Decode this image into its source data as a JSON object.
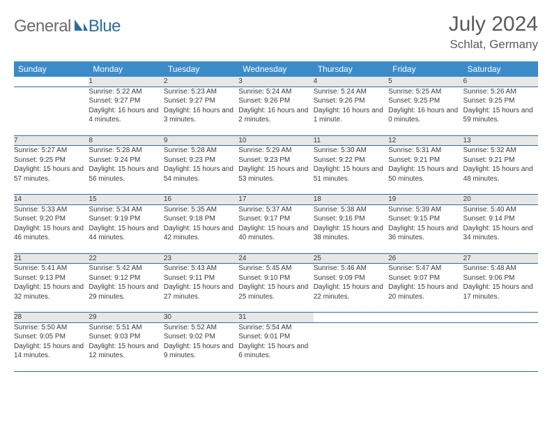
{
  "brand": {
    "general": "General",
    "blue": "Blue"
  },
  "title": {
    "month": "July 2024",
    "location": "Schlat, Germany"
  },
  "colors": {
    "header_bg": "#3b8bc9",
    "daynum_bg": "#e7e7e7",
    "border": "#2d6ca2",
    "logo_blue": "#2d6ca2",
    "text": "#3a3a3a"
  },
  "weekdays": [
    "Sunday",
    "Monday",
    "Tuesday",
    "Wednesday",
    "Thursday",
    "Friday",
    "Saturday"
  ],
  "weeks": [
    {
      "nums": [
        "",
        "1",
        "2",
        "3",
        "4",
        "5",
        "6"
      ],
      "details": [
        "",
        "Sunrise: 5:22 AM\nSunset: 9:27 PM\nDaylight: 16 hours and 4 minutes.",
        "Sunrise: 5:23 AM\nSunset: 9:27 PM\nDaylight: 16 hours and 3 minutes.",
        "Sunrise: 5:24 AM\nSunset: 9:26 PM\nDaylight: 16 hours and 2 minutes.",
        "Sunrise: 5:24 AM\nSunset: 9:26 PM\nDaylight: 16 hours and 1 minute.",
        "Sunrise: 5:25 AM\nSunset: 9:25 PM\nDaylight: 16 hours and 0 minutes.",
        "Sunrise: 5:26 AM\nSunset: 9:25 PM\nDaylight: 15 hours and 59 minutes."
      ]
    },
    {
      "nums": [
        "7",
        "8",
        "9",
        "10",
        "11",
        "12",
        "13"
      ],
      "details": [
        "Sunrise: 5:27 AM\nSunset: 9:25 PM\nDaylight: 15 hours and 57 minutes.",
        "Sunrise: 5:28 AM\nSunset: 9:24 PM\nDaylight: 15 hours and 56 minutes.",
        "Sunrise: 5:28 AM\nSunset: 9:23 PM\nDaylight: 15 hours and 54 minutes.",
        "Sunrise: 5:29 AM\nSunset: 9:23 PM\nDaylight: 15 hours and 53 minutes.",
        "Sunrise: 5:30 AM\nSunset: 9:22 PM\nDaylight: 15 hours and 51 minutes.",
        "Sunrise: 5:31 AM\nSunset: 9:21 PM\nDaylight: 15 hours and 50 minutes.",
        "Sunrise: 5:32 AM\nSunset: 9:21 PM\nDaylight: 15 hours and 48 minutes."
      ]
    },
    {
      "nums": [
        "14",
        "15",
        "16",
        "17",
        "18",
        "19",
        "20"
      ],
      "details": [
        "Sunrise: 5:33 AM\nSunset: 9:20 PM\nDaylight: 15 hours and 46 minutes.",
        "Sunrise: 5:34 AM\nSunset: 9:19 PM\nDaylight: 15 hours and 44 minutes.",
        "Sunrise: 5:35 AM\nSunset: 9:18 PM\nDaylight: 15 hours and 42 minutes.",
        "Sunrise: 5:37 AM\nSunset: 9:17 PM\nDaylight: 15 hours and 40 minutes.",
        "Sunrise: 5:38 AM\nSunset: 9:16 PM\nDaylight: 15 hours and 38 minutes.",
        "Sunrise: 5:39 AM\nSunset: 9:15 PM\nDaylight: 15 hours and 36 minutes.",
        "Sunrise: 5:40 AM\nSunset: 9:14 PM\nDaylight: 15 hours and 34 minutes."
      ]
    },
    {
      "nums": [
        "21",
        "22",
        "23",
        "24",
        "25",
        "26",
        "27"
      ],
      "details": [
        "Sunrise: 5:41 AM\nSunset: 9:13 PM\nDaylight: 15 hours and 32 minutes.",
        "Sunrise: 5:42 AM\nSunset: 9:12 PM\nDaylight: 15 hours and 29 minutes.",
        "Sunrise: 5:43 AM\nSunset: 9:11 PM\nDaylight: 15 hours and 27 minutes.",
        "Sunrise: 5:45 AM\nSunset: 9:10 PM\nDaylight: 15 hours and 25 minutes.",
        "Sunrise: 5:46 AM\nSunset: 9:09 PM\nDaylight: 15 hours and 22 minutes.",
        "Sunrise: 5:47 AM\nSunset: 9:07 PM\nDaylight: 15 hours and 20 minutes.",
        "Sunrise: 5:48 AM\nSunset: 9:06 PM\nDaylight: 15 hours and 17 minutes."
      ]
    },
    {
      "nums": [
        "28",
        "29",
        "30",
        "31",
        "",
        "",
        ""
      ],
      "details": [
        "Sunrise: 5:50 AM\nSunset: 9:05 PM\nDaylight: 15 hours and 14 minutes.",
        "Sunrise: 5:51 AM\nSunset: 9:03 PM\nDaylight: 15 hours and 12 minutes.",
        "Sunrise: 5:52 AM\nSunset: 9:02 PM\nDaylight: 15 hours and 9 minutes.",
        "Sunrise: 5:54 AM\nSunset: 9:01 PM\nDaylight: 15 hours and 6 minutes.",
        "",
        "",
        ""
      ]
    }
  ]
}
